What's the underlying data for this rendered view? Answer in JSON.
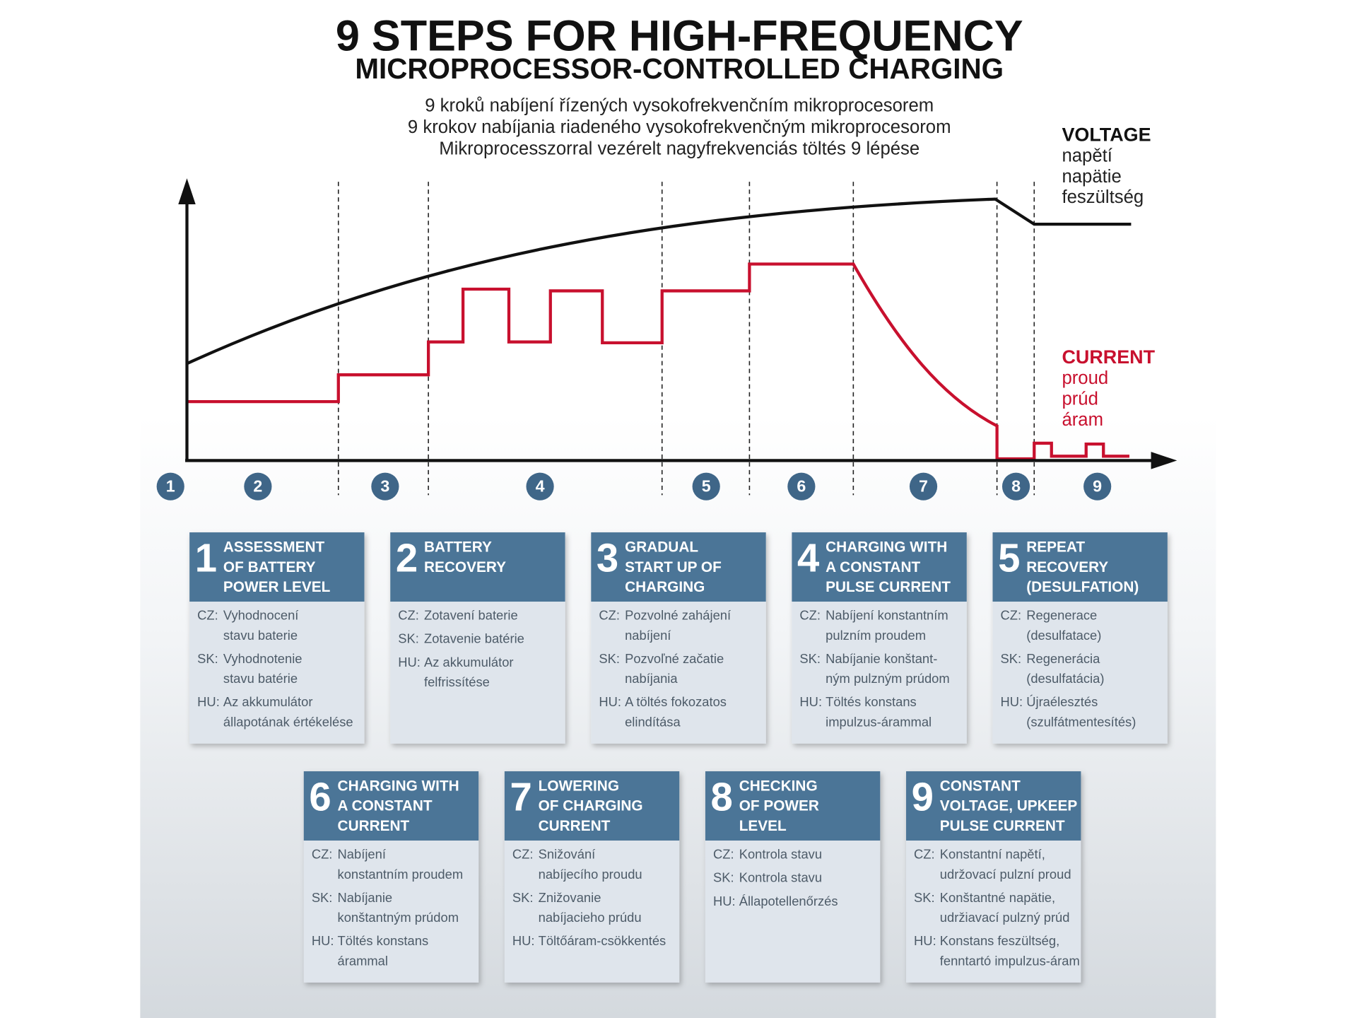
{
  "header": {
    "title": [
      "9 STEPS FOR HIGH-FREQUENCY",
      "MICROPROCESSOR-CONTROLLED CHARGING"
    ],
    "subtitles": [
      "9 kroků nabíjení řízených vysokofrekvenčním mikroprocesorem",
      "9 krokov nabíjania riadeného vysokofrekvenčným mikroprocesorom",
      "Mikroprocesszorral vezérelt nagyfrekvenciás töltés 9 lépése"
    ]
  },
  "legend": {
    "voltage": {
      "label": "VOLTAGE",
      "translations": [
        "napětí",
        "napätie",
        "feszültség"
      ]
    },
    "current": {
      "label": "CURRENT",
      "translations": [
        "proud",
        "prúd",
        "áram"
      ]
    }
  },
  "steps": [
    "1",
    "2",
    "3",
    "4",
    "5",
    "6",
    "7",
    "8",
    "9"
  ],
  "cards": [
    {
      "number": "1",
      "title": [
        "ASSESSMENT",
        "OF BATTERY",
        "POWER LEVEL"
      ],
      "rows": [
        {
          "lang": "CZ:",
          "text": [
            "Vyhodnocení",
            "stavu baterie"
          ]
        },
        {
          "lang": "SK:",
          "text": [
            "Vyhodnotenie",
            "stavu batérie"
          ]
        },
        {
          "lang": "HU:",
          "text": [
            "Az akkumulátor",
            "állapotának értékelése"
          ]
        }
      ]
    },
    {
      "number": "2",
      "title": [
        "BATTERY",
        "RECOVERY"
      ],
      "rows": [
        {
          "lang": "CZ:",
          "text": [
            "Zotavení baterie"
          ]
        },
        {
          "lang": "SK:",
          "text": [
            "Zotavenie batérie"
          ]
        },
        {
          "lang": "HU:",
          "text": [
            "Az akkumulátor",
            "felfrissítése"
          ]
        }
      ]
    },
    {
      "number": "3",
      "title": [
        "GRADUAL",
        "START UP OF",
        "CHARGING"
      ],
      "rows": [
        {
          "lang": "CZ:",
          "text": [
            "Pozvolné zahájení",
            "nabíjení"
          ]
        },
        {
          "lang": "SK:",
          "text": [
            "Pozvoľné začatie",
            "nabíjania"
          ]
        },
        {
          "lang": "HU:",
          "text": [
            "A töltés fokozatos",
            "elindítása"
          ]
        }
      ]
    },
    {
      "number": "4",
      "title": [
        "CHARGING WITH",
        "A CONSTANT",
        "PULSE CURRENT"
      ],
      "rows": [
        {
          "lang": "CZ:",
          "text": [
            "Nabíjení konstantním",
            "pulzním proudem"
          ]
        },
        {
          "lang": "SK:",
          "text": [
            "Nabíjanie konštant-",
            "ným pulzným prúdom"
          ]
        },
        {
          "lang": "HU:",
          "text": [
            "Töltés konstans",
            "impulzus-árammal"
          ]
        }
      ]
    },
    {
      "number": "5",
      "title": [
        "REPEAT",
        "RECOVERY",
        "(DESULFATION)"
      ],
      "rows": [
        {
          "lang": "CZ:",
          "text": [
            "Regenerace",
            "(desulfatace)"
          ]
        },
        {
          "lang": "SK:",
          "text": [
            "Regenerácia",
            "(desulfatácia)"
          ]
        },
        {
          "lang": "HU:",
          "text": [
            "Újraélesztés",
            "(szulfátmentesítés)"
          ]
        }
      ]
    },
    {
      "number": "6",
      "title": [
        "CHARGING WITH",
        "A CONSTANT",
        "CURRENT"
      ],
      "rows": [
        {
          "lang": "CZ:",
          "text": [
            "Nabíjení",
            "konstantním proudem"
          ]
        },
        {
          "lang": "SK:",
          "text": [
            "Nabíjanie",
            "konštantným prúdom"
          ]
        },
        {
          "lang": "HU:",
          "text": [
            "Töltés konstans",
            "árammal"
          ]
        }
      ]
    },
    {
      "number": "7",
      "title": [
        "LOWERING",
        "OF CHARGING",
        "CURRENT"
      ],
      "rows": [
        {
          "lang": "CZ:",
          "text": [
            "Snižování",
            "nabíjecího proudu"
          ]
        },
        {
          "lang": "SK:",
          "text": [
            "Znižovanie",
            "nabíjacieho prúdu"
          ]
        },
        {
          "lang": "HU:",
          "text": [
            "Töltőáram-csökkentés"
          ]
        }
      ]
    },
    {
      "number": "8",
      "title": [
        "CHECKING",
        "OF POWER",
        "LEVEL"
      ],
      "rows": [
        {
          "lang": "CZ:",
          "text": [
            "Kontrola stavu"
          ]
        },
        {
          "lang": "SK:",
          "text": [
            "Kontrola stavu"
          ]
        },
        {
          "lang": "HU:",
          "text": [
            "Állapotellenőrzés"
          ]
        }
      ]
    },
    {
      "number": "9",
      "title": [
        "CONSTANT",
        "VOLTAGE, UPKEEP",
        "PULSE CURRENT"
      ],
      "rows": [
        {
          "lang": "CZ:",
          "text": [
            "Konstantní napětí,",
            "udržovací pulzní proud"
          ]
        },
        {
          "lang": "SK:",
          "text": [
            "Konštantné napätie,",
            "udržiavací pulzný prúd"
          ]
        },
        {
          "lang": "HU:",
          "text": [
            "Konstans feszültség,",
            "fenntartó impulzus-áram"
          ]
        }
      ]
    }
  ]
}
